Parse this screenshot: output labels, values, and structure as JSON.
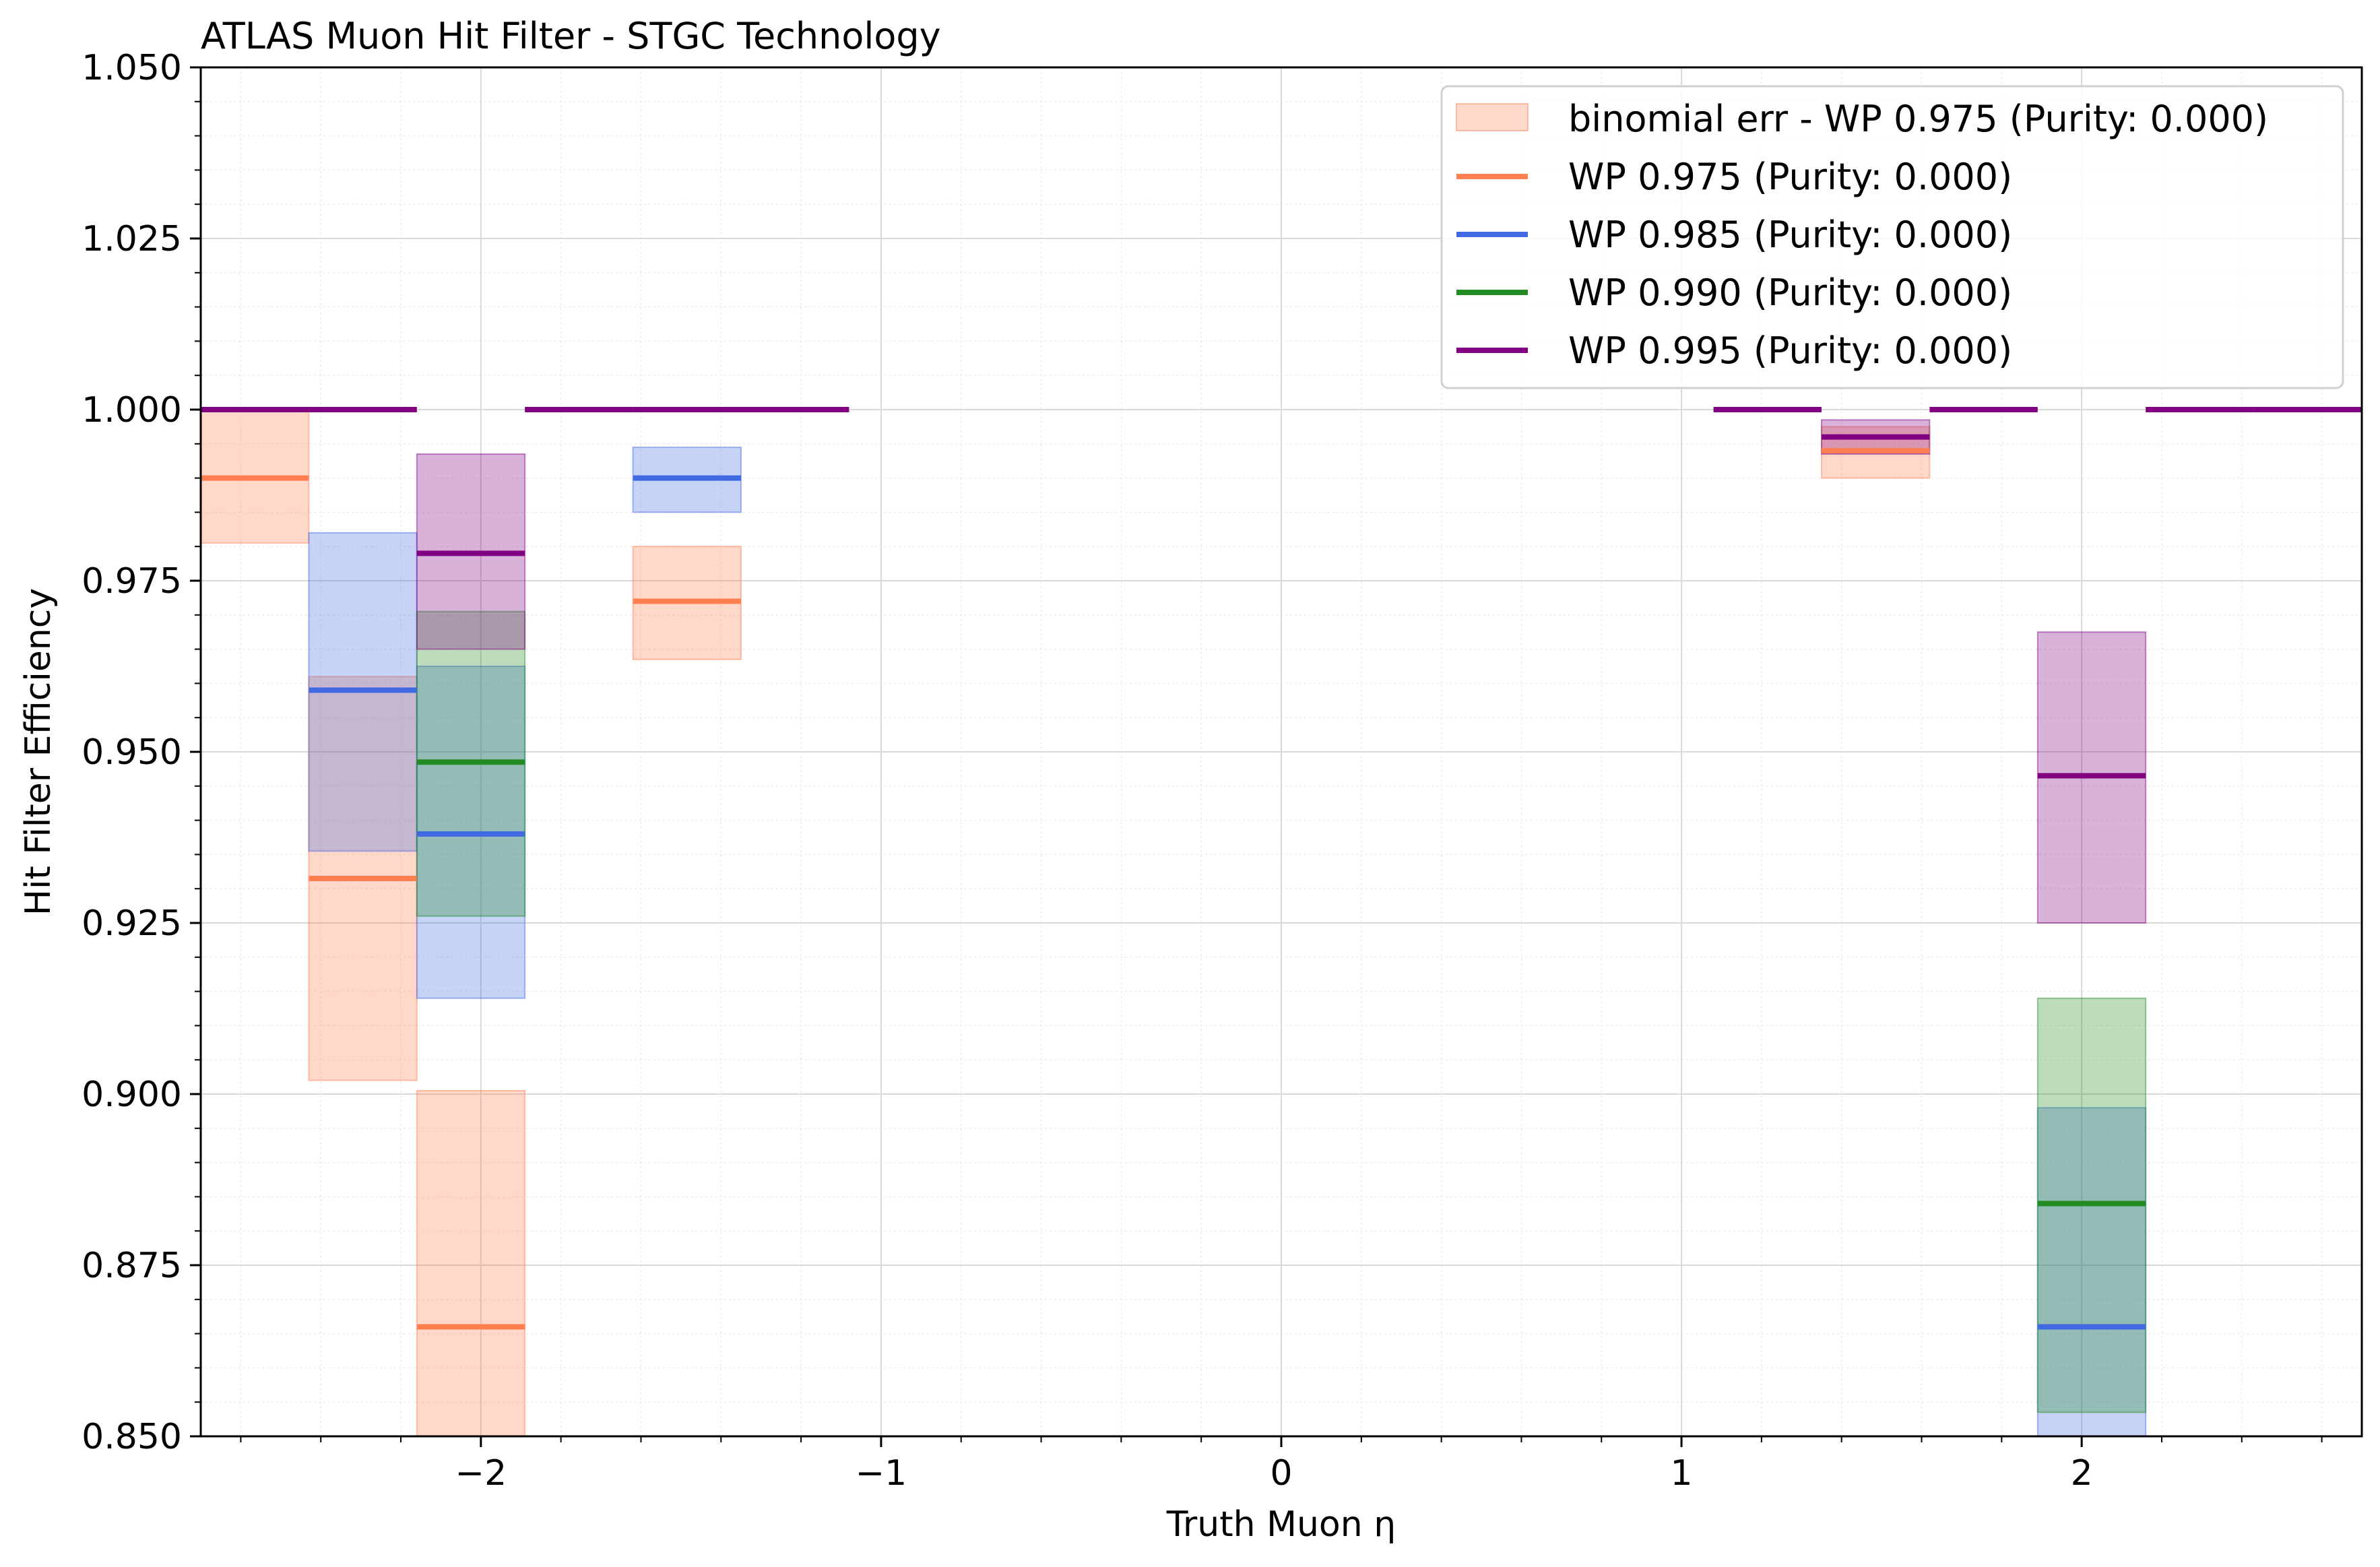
{
  "chart_data": {
    "type": "line",
    "title": "ATLAS Muon Hit Filter - STGC Technology",
    "xlabel": "Truth Muon η",
    "ylabel": "Hit Filter Efficiency",
    "xlim": [
      -2.7,
      2.7
    ],
    "ylim": [
      0.85,
      1.05
    ],
    "x_ticks": [
      -2,
      -1,
      0,
      1,
      2
    ],
    "x_tick_labels": [
      "−2",
      "−1",
      "0",
      "1",
      "2"
    ],
    "y_ticks": [
      0.85,
      0.875,
      0.9,
      0.925,
      0.95,
      0.975,
      1.0,
      1.025,
      1.05
    ],
    "y_tick_labels": [
      "0.850",
      "0.875",
      "0.900",
      "0.925",
      "0.950",
      "0.975",
      "1.000",
      "1.025",
      "1.050"
    ],
    "grid": true,
    "legend_position": "top-right",
    "legend": [
      {
        "label": "binomial err - WP 0.975 (Purity: 0.000)",
        "kind": "patch",
        "series": 0
      },
      {
        "label": "WP 0.975 (Purity: 0.000)",
        "kind": "line",
        "series": 0
      },
      {
        "label": "WP 0.985 (Purity: 0.000)",
        "kind": "line",
        "series": 1
      },
      {
        "label": "WP 0.990 (Purity: 0.000)",
        "kind": "line",
        "series": 2
      },
      {
        "label": "WP 0.995 (Purity: 0.000)",
        "kind": "line",
        "series": 3
      }
    ],
    "series": [
      {
        "name": "WP 0.975 (Purity: 0.000)",
        "color": "#ff7f50",
        "bins": [
          {
            "x0": -2.7,
            "x1": -2.43,
            "y": 0.99,
            "lo": 0.9805,
            "hi": 1.0
          },
          {
            "x0": -2.43,
            "x1": -2.16,
            "y": 0.9315,
            "lo": 0.902,
            "hi": 0.961
          },
          {
            "x0": -2.16,
            "x1": -1.89,
            "y": 0.866,
            "lo": 0.8315,
            "hi": 0.9005
          },
          {
            "x0": -1.62,
            "x1": -1.35,
            "y": 0.972,
            "lo": 0.9635,
            "hi": 0.98
          },
          {
            "x0": 1.35,
            "x1": 1.62,
            "y": 0.994,
            "lo": 0.99,
            "hi": 0.9975
          }
        ]
      },
      {
        "name": "WP 0.985 (Purity: 0.000)",
        "color": "#4169e1",
        "bins": [
          {
            "x0": -2.43,
            "x1": -2.16,
            "y": 0.959,
            "lo": 0.9355,
            "hi": 0.982
          },
          {
            "x0": -2.16,
            "x1": -1.89,
            "y": 0.938,
            "lo": 0.914,
            "hi": 0.9625
          },
          {
            "x0": -1.62,
            "x1": -1.35,
            "y": 0.99,
            "lo": 0.985,
            "hi": 0.9945
          },
          {
            "x0": 1.89,
            "x1": 2.16,
            "y": 0.866,
            "lo": 0.8335,
            "hi": 0.898
          }
        ]
      },
      {
        "name": "WP 0.990 (Purity: 0.000)",
        "color": "#228b22",
        "bins": [
          {
            "x0": -2.16,
            "x1": -1.89,
            "y": 0.9485,
            "lo": 0.926,
            "hi": 0.9705
          },
          {
            "x0": 1.89,
            "x1": 2.16,
            "y": 0.884,
            "lo": 0.8535,
            "hi": 0.914
          }
        ]
      },
      {
        "name": "WP 0.995 (Purity: 0.000)",
        "color": "#800080",
        "bins": [
          {
            "x0": -2.7,
            "x1": -2.43,
            "y": 1.0
          },
          {
            "x0": -2.43,
            "x1": -2.16,
            "y": 1.0
          },
          {
            "x0": -2.16,
            "x1": -1.89,
            "y": 0.979,
            "lo": 0.965,
            "hi": 0.9935
          },
          {
            "x0": -1.89,
            "x1": -1.62,
            "y": 1.0
          },
          {
            "x0": -1.62,
            "x1": -1.35,
            "y": 1.0
          },
          {
            "x0": -1.35,
            "x1": -1.08,
            "y": 1.0
          },
          {
            "x0": 1.08,
            "x1": 1.35,
            "y": 1.0
          },
          {
            "x0": 1.35,
            "x1": 1.62,
            "y": 0.996,
            "lo": 0.9935,
            "hi": 0.9985
          },
          {
            "x0": 1.62,
            "x1": 1.89,
            "y": 1.0
          },
          {
            "x0": 1.89,
            "x1": 2.16,
            "y": 0.9465,
            "lo": 0.925,
            "hi": 0.9675
          },
          {
            "x0": 2.16,
            "x1": 2.43,
            "y": 1.0
          },
          {
            "x0": 2.43,
            "x1": 2.7,
            "y": 1.0
          }
        ]
      }
    ]
  }
}
